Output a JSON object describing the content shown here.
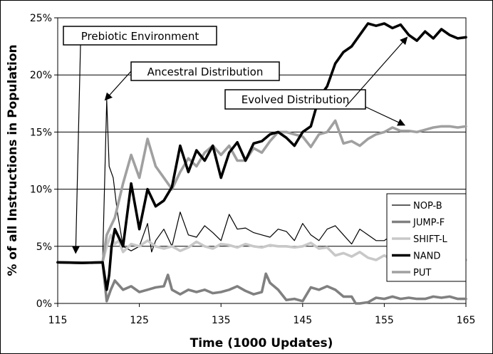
{
  "chart_data": {
    "type": "line",
    "xlabel": "Time (1000 Updates)",
    "ylabel": "% of all Instructions in Population",
    "xlim": [
      115,
      165
    ],
    "ylim": [
      0,
      25
    ],
    "x_ticks": [
      115,
      125,
      135,
      145,
      155,
      165
    ],
    "x_tick_labels": [
      "115",
      "125",
      "135",
      "145",
      "155",
      "165"
    ],
    "y_ticks": [
      0,
      5,
      10,
      15,
      20,
      25
    ],
    "y_tick_labels": [
      "0%",
      "5%",
      "10%",
      "15%",
      "20%",
      "25%"
    ],
    "grid": "horizontal",
    "legend_position": "right",
    "series": [
      {
        "name": "NOP-B",
        "color": "#000000",
        "weight": "thin",
        "points": [
          [
            115,
            3.6
          ],
          [
            118,
            3.55
          ],
          [
            120.5,
            3.6
          ],
          [
            121,
            17.8
          ],
          [
            121.3,
            12
          ],
          [
            121.8,
            11
          ],
          [
            122.3,
            8
          ],
          [
            123,
            5
          ],
          [
            124,
            4.6
          ],
          [
            125,
            5
          ],
          [
            126,
            7
          ],
          [
            126.5,
            4.5
          ],
          [
            127,
            5.5
          ],
          [
            128,
            6.5
          ],
          [
            129,
            5
          ],
          [
            130,
            8
          ],
          [
            131,
            6
          ],
          [
            132,
            5.8
          ],
          [
            133,
            6.8
          ],
          [
            134,
            6.2
          ],
          [
            135,
            5.5
          ],
          [
            136,
            7.8
          ],
          [
            137,
            6.5
          ],
          [
            138,
            6.6
          ],
          [
            139,
            6.2
          ],
          [
            140,
            6
          ],
          [
            141,
            5.8
          ],
          [
            142,
            6.5
          ],
          [
            143,
            6.3
          ],
          [
            144,
            5.5
          ],
          [
            145,
            7
          ],
          [
            146,
            6
          ],
          [
            147,
            5.5
          ],
          [
            148,
            6.5
          ],
          [
            149,
            6.8
          ],
          [
            150,
            6
          ],
          [
            151,
            5.2
          ],
          [
            152,
            6.5
          ],
          [
            153,
            6
          ],
          [
            154,
            5.5
          ],
          [
            155,
            5.5
          ],
          [
            156,
            6
          ],
          [
            157,
            5.8
          ],
          [
            158,
            5.7
          ],
          [
            159,
            6
          ],
          [
            160,
            6
          ],
          [
            161,
            6.2
          ],
          [
            162,
            6.3
          ],
          [
            163,
            6
          ],
          [
            164,
            6.5
          ],
          [
            165,
            6.4
          ]
        ]
      },
      {
        "name": "JUMP-F",
        "color": "#808080",
        "weight": "thick",
        "points": [
          [
            115,
            3.6
          ],
          [
            118,
            3.55
          ],
          [
            120.5,
            3.6
          ],
          [
            121,
            0.2
          ],
          [
            121.5,
            1.2
          ],
          [
            122,
            2
          ],
          [
            123,
            1.2
          ],
          [
            124,
            1.5
          ],
          [
            125,
            1
          ],
          [
            126,
            1.2
          ],
          [
            127,
            1.4
          ],
          [
            128,
            1.5
          ],
          [
            128.5,
            2.5
          ],
          [
            129,
            1.2
          ],
          [
            130,
            0.8
          ],
          [
            131,
            1.2
          ],
          [
            132,
            1
          ],
          [
            133,
            1.2
          ],
          [
            134,
            0.9
          ],
          [
            135,
            1
          ],
          [
            136,
            1.2
          ],
          [
            137,
            1.5
          ],
          [
            138,
            1.1
          ],
          [
            139,
            0.8
          ],
          [
            140,
            1
          ],
          [
            140.5,
            2.6
          ],
          [
            141,
            1.8
          ],
          [
            142,
            1.2
          ],
          [
            143,
            0.3
          ],
          [
            144,
            0.4
          ],
          [
            145,
            0.2
          ],
          [
            146,
            1.4
          ],
          [
            147,
            1.2
          ],
          [
            148,
            1.5
          ],
          [
            149,
            1.2
          ],
          [
            150,
            0.6
          ],
          [
            151,
            0.6
          ],
          [
            151.5,
            0
          ],
          [
            152,
            0
          ],
          [
            153,
            0.1
          ],
          [
            154,
            0.5
          ],
          [
            155,
            0.4
          ],
          [
            156,
            0.6
          ],
          [
            157,
            0.4
          ],
          [
            158,
            0.5
          ],
          [
            159,
            0.4
          ],
          [
            160,
            0.4
          ],
          [
            161,
            0.6
          ],
          [
            162,
            0.5
          ],
          [
            163,
            0.6
          ],
          [
            164,
            0.4
          ],
          [
            165,
            0.4
          ]
        ]
      },
      {
        "name": "SHIFT-L",
        "color": "#c8c8c8",
        "weight": "thick",
        "points": [
          [
            115,
            3.6
          ],
          [
            118,
            3.55
          ],
          [
            120.5,
            3.6
          ],
          [
            121,
            5
          ],
          [
            121.5,
            6
          ],
          [
            122,
            5.2
          ],
          [
            122.5,
            5.5
          ],
          [
            123,
            4.5
          ],
          [
            124,
            5.2
          ],
          [
            125,
            5
          ],
          [
            126,
            5.5
          ],
          [
            127,
            5
          ],
          [
            128,
            4.8
          ],
          [
            129,
            5
          ],
          [
            130,
            4.6
          ],
          [
            131,
            4.9
          ],
          [
            132,
            5.4
          ],
          [
            133,
            5
          ],
          [
            134,
            4.8
          ],
          [
            135,
            5.2
          ],
          [
            136,
            5.1
          ],
          [
            137,
            4.9
          ],
          [
            138,
            5.2
          ],
          [
            139,
            5
          ],
          [
            140,
            4.9
          ],
          [
            141,
            5.1
          ],
          [
            142,
            5
          ],
          [
            143,
            5
          ],
          [
            144,
            4.9
          ],
          [
            145,
            5
          ],
          [
            146,
            5.3
          ],
          [
            147,
            4.8
          ],
          [
            148,
            4.9
          ],
          [
            149,
            4.2
          ],
          [
            150,
            4.4
          ],
          [
            151,
            4.1
          ],
          [
            152,
            4.5
          ],
          [
            153,
            4
          ],
          [
            154,
            3.8
          ],
          [
            155,
            4.2
          ],
          [
            156,
            3.8
          ],
          [
            157,
            3.7
          ],
          [
            158,
            3.7
          ],
          [
            159,
            3.6
          ],
          [
            160,
            3.7
          ],
          [
            161,
            3.5
          ],
          [
            162,
            3.9
          ],
          [
            163,
            3.6
          ],
          [
            164,
            3.7
          ],
          [
            165,
            3.8
          ]
        ]
      },
      {
        "name": "NAND",
        "color": "#000000",
        "weight": "thick",
        "points": [
          [
            115,
            3.6
          ],
          [
            118,
            3.55
          ],
          [
            120.5,
            3.6
          ],
          [
            121,
            1.2
          ],
          [
            121.3,
            2.5
          ],
          [
            121.6,
            5
          ],
          [
            122,
            6.5
          ],
          [
            123,
            5
          ],
          [
            124,
            10.5
          ],
          [
            125,
            6.5
          ],
          [
            126,
            10
          ],
          [
            127,
            8.5
          ],
          [
            128,
            9
          ],
          [
            129,
            10.2
          ],
          [
            130,
            13.8
          ],
          [
            131,
            11.5
          ],
          [
            132,
            13.4
          ],
          [
            133,
            12.5
          ],
          [
            134,
            13.8
          ],
          [
            135,
            11
          ],
          [
            136,
            13.2
          ],
          [
            137,
            14.1
          ],
          [
            138,
            12.5
          ],
          [
            139,
            14
          ],
          [
            140,
            14.2
          ],
          [
            141,
            14.8
          ],
          [
            142,
            15
          ],
          [
            143,
            14.5
          ],
          [
            144,
            13.8
          ],
          [
            145,
            15
          ],
          [
            146,
            15.5
          ],
          [
            147,
            18
          ],
          [
            148,
            19
          ],
          [
            149,
            21
          ],
          [
            150,
            22
          ],
          [
            151,
            22.5
          ],
          [
            152,
            23.5
          ],
          [
            153,
            24.5
          ],
          [
            154,
            24.3
          ],
          [
            155,
            24.5
          ],
          [
            156,
            24.1
          ],
          [
            157,
            24.4
          ],
          [
            158,
            23.5
          ],
          [
            159,
            23
          ],
          [
            160,
            23.8
          ],
          [
            161,
            23.2
          ],
          [
            162,
            24
          ],
          [
            163,
            23.5
          ],
          [
            164,
            23.2
          ],
          [
            165,
            23.3
          ]
        ]
      },
      {
        "name": "PUT",
        "color": "#a0a0a0",
        "weight": "thick",
        "points": [
          [
            115,
            3.6
          ],
          [
            118,
            3.55
          ],
          [
            120.5,
            3.6
          ],
          [
            121,
            6
          ],
          [
            122,
            7.5
          ],
          [
            123,
            10.5
          ],
          [
            124,
            13
          ],
          [
            125,
            11
          ],
          [
            126,
            14.4
          ],
          [
            127,
            12
          ],
          [
            128,
            11
          ],
          [
            129,
            10
          ],
          [
            130,
            11.5
          ],
          [
            131,
            12.7
          ],
          [
            132,
            12
          ],
          [
            133,
            13.2
          ],
          [
            134,
            13.8
          ],
          [
            135,
            13
          ],
          [
            136,
            13.8
          ],
          [
            137,
            12.5
          ],
          [
            138,
            12.5
          ],
          [
            139,
            13.6
          ],
          [
            140,
            13.2
          ],
          [
            141,
            14.2
          ],
          [
            142,
            15
          ],
          [
            143,
            15
          ],
          [
            144,
            14.8
          ],
          [
            145,
            14.6
          ],
          [
            146,
            13.7
          ],
          [
            147,
            14.8
          ],
          [
            148,
            15
          ],
          [
            149,
            16
          ],
          [
            150,
            14
          ],
          [
            151,
            14.2
          ],
          [
            152,
            13.8
          ],
          [
            153,
            14.4
          ],
          [
            154,
            14.8
          ],
          [
            155,
            15
          ],
          [
            156,
            15.4
          ],
          [
            157,
            15.1
          ],
          [
            158,
            15.1
          ],
          [
            159,
            15
          ],
          [
            160,
            15.2
          ],
          [
            161,
            15.4
          ],
          [
            162,
            15.5
          ],
          [
            163,
            15.5
          ],
          [
            164,
            15.4
          ],
          [
            165,
            15.5
          ]
        ]
      }
    ],
    "annotations": [
      {
        "text": "Prebiotic Environment",
        "target": [
          117.2,
          4.4
        ]
      },
      {
        "text": "Ancestral Distribution",
        "target": [
          120.8,
          17.8
        ]
      },
      {
        "text": "Evolved Distribution",
        "target": [
          157.5,
          15.6
        ]
      },
      {
        "text": "",
        "target": [
          157.8,
          23.3
        ]
      }
    ]
  }
}
